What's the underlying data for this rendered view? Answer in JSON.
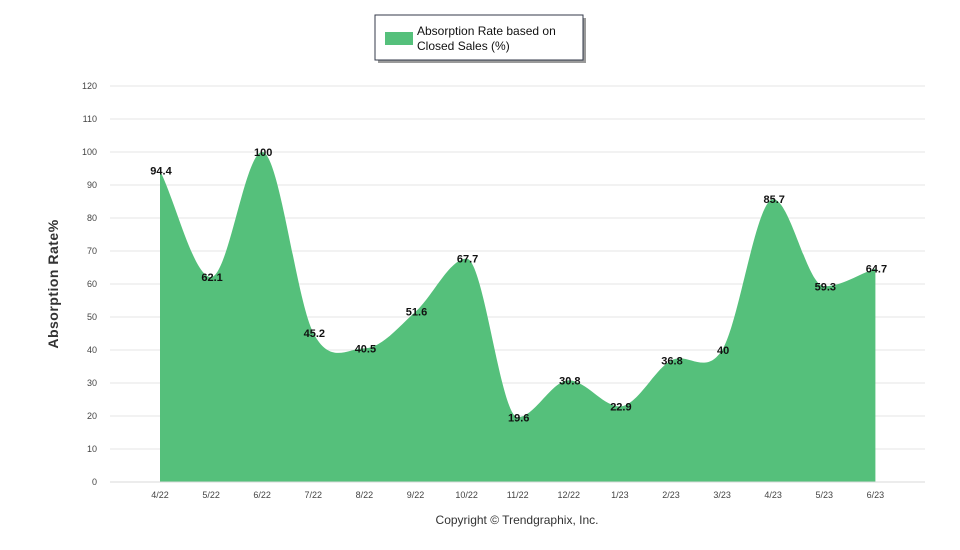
{
  "chart_data": {
    "type": "area",
    "categories": [
      "4/22",
      "5/22",
      "6/22",
      "7/22",
      "8/22",
      "9/22",
      "10/22",
      "11/22",
      "12/22",
      "1/23",
      "2/23",
      "3/23",
      "4/23",
      "5/23",
      "6/23"
    ],
    "series": [
      {
        "name": "Absorption Rate based on Closed Sales (%)",
        "values": [
          94.4,
          62.1,
          100,
          45.2,
          40.5,
          51.6,
          67.7,
          19.6,
          30.8,
          22.9,
          36.8,
          40,
          85.7,
          59.3,
          64.7
        ],
        "color": "#55c07b"
      }
    ],
    "data_labels": [
      "94.4",
      "62.1",
      "100",
      "45.2",
      "40.5",
      "51.6",
      "67.7",
      "19.6",
      "30.8",
      "22.9",
      "36.8",
      "40",
      "85.7",
      "59.3",
      "64.7"
    ],
    "ylabel": "Absorption Rate%",
    "ylim": [
      0,
      120
    ],
    "yticks": [
      "0",
      "10",
      "20",
      "30",
      "40",
      "50",
      "60",
      "70",
      "80",
      "90",
      "100",
      "110",
      "120"
    ],
    "grid": true,
    "legend": {
      "placement": "top-center",
      "line1": "Absorption Rate based on",
      "line2": "Closed Sales (%)"
    },
    "footer": "Copyright © Trendgraphix, Inc."
  }
}
